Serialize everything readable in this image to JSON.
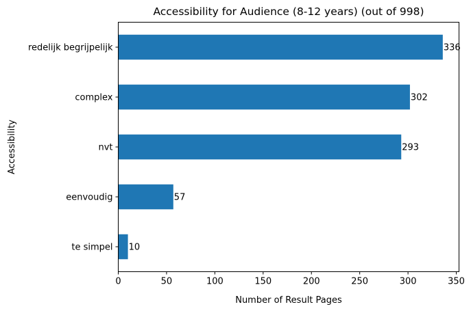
{
  "chart_data": {
    "type": "bar",
    "orientation": "horizontal",
    "title": "Accessibility for Audience (8-12 years) (out of 998)",
    "xlabel": "Number of Result Pages",
    "ylabel": "Accessibility",
    "categories": [
      "redelijk begrijpelijk",
      "complex",
      "nvt",
      "eenvoudig",
      "te simpel"
    ],
    "values": [
      336,
      302,
      293,
      57,
      10
    ],
    "data_labels": [
      "336",
      "302",
      "293",
      "57",
      "10"
    ],
    "xlim": [
      0,
      352.8
    ],
    "xticks": [
      0,
      50,
      100,
      150,
      200,
      250,
      300,
      350
    ],
    "bar_color": "#1f77b4",
    "grid": false,
    "legend": "none"
  }
}
